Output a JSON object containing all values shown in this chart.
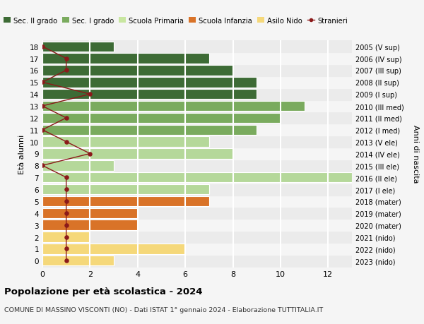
{
  "ages": [
    18,
    17,
    16,
    15,
    14,
    13,
    12,
    11,
    10,
    9,
    8,
    7,
    6,
    5,
    4,
    3,
    2,
    1,
    0
  ],
  "right_labels": [
    "2005 (V sup)",
    "2006 (IV sup)",
    "2007 (III sup)",
    "2008 (II sup)",
    "2009 (I sup)",
    "2010 (III med)",
    "2011 (II med)",
    "2012 (I med)",
    "2013 (V ele)",
    "2014 (IV ele)",
    "2015 (III ele)",
    "2016 (II ele)",
    "2017 (I ele)",
    "2018 (mater)",
    "2019 (mater)",
    "2020 (mater)",
    "2021 (nido)",
    "2022 (nido)",
    "2023 (nido)"
  ],
  "bar_values": [
    3,
    7,
    8,
    9,
    9,
    11,
    10,
    9,
    7,
    8,
    3,
    13,
    7,
    7,
    4,
    4,
    2,
    6,
    3
  ],
  "bar_colors": [
    "#3d6b35",
    "#3d6b35",
    "#3d6b35",
    "#3d6b35",
    "#3d6b35",
    "#7aab5e",
    "#7aab5e",
    "#7aab5e",
    "#b5d89a",
    "#b5d89a",
    "#b5d89a",
    "#b5d89a",
    "#b5d89a",
    "#d97328",
    "#d97328",
    "#d97328",
    "#f5d87a",
    "#f5d87a",
    "#f5d87a"
  ],
  "bar_alt_colors": [
    "#4a7f3d",
    "#4a7f3d",
    "#4a7f3d",
    "#4a7f3d",
    "#4a7f3d",
    "#88bb6a",
    "#88bb6a",
    "#88bb6a",
    "#c3e5ac",
    "#c3e5ac",
    "#c3e5ac",
    "#c3e5ac",
    "#c3e5ac",
    "#e8833a",
    "#e8833a",
    "#e8833a",
    "#fae090",
    "#fae090",
    "#fae090"
  ],
  "stranieri_values": [
    0,
    1,
    1,
    0,
    2,
    0,
    1,
    0,
    1,
    2,
    0,
    1,
    1,
    1,
    1,
    1,
    1,
    1,
    1
  ],
  "legend_labels": [
    "Sec. II grado",
    "Sec. I grado",
    "Scuola Primaria",
    "Scuola Infanzia",
    "Asilo Nido",
    "Stranieri"
  ],
  "legend_colors": [
    "#3d6b35",
    "#7aab5e",
    "#c8e6a0",
    "#d97328",
    "#f5d87a",
    "#8b1a1a"
  ],
  "title": "Popolazione per età scolastica - 2024",
  "subtitle": "COMUNE DI MASSINO VISCONTI (NO) - Dati ISTAT 1° gennaio 2024 - Elaborazione TUTTITALIA.IT",
  "ylabel_left": "Età alunni",
  "ylabel_right": "Anni di nascita",
  "xlim": [
    0,
    13
  ],
  "ylim": [
    -0.55,
    18.55
  ],
  "bg_color": "#f5f5f5",
  "grid_color": "#ffffff",
  "bar_height": 0.85
}
